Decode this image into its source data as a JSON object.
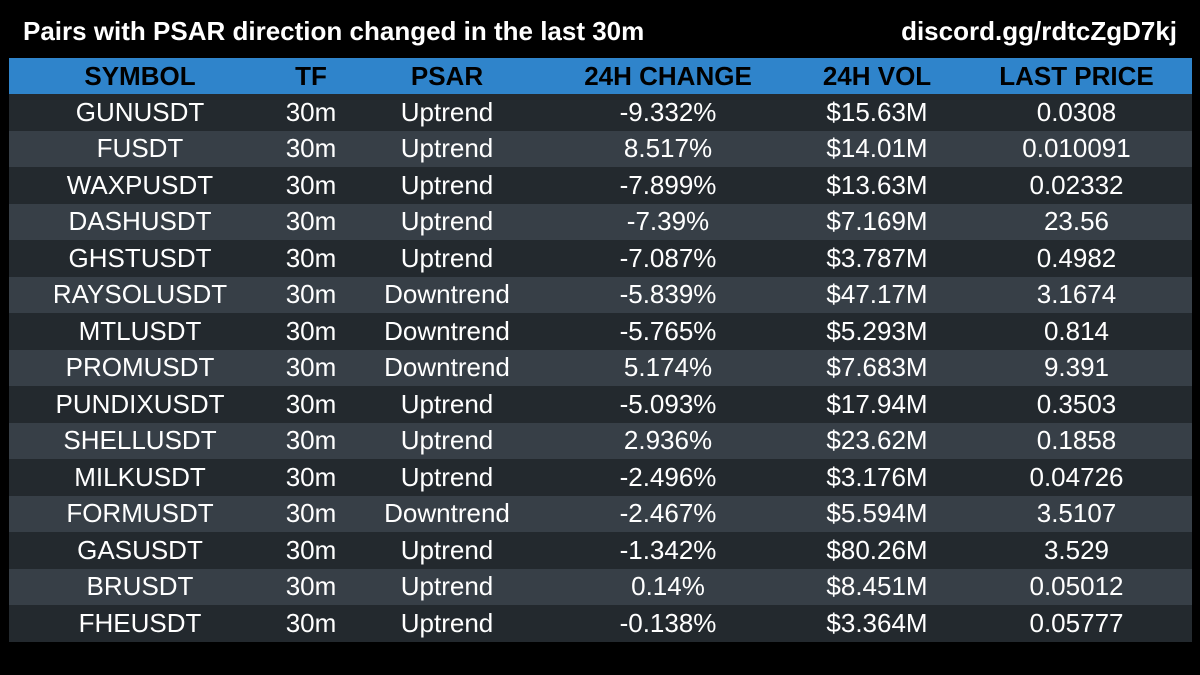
{
  "header": {
    "title": "Pairs with PSAR direction changed in the last 30m",
    "discord": "discord.gg/rdtcZgD7kj"
  },
  "columns": [
    "SYMBOL",
    "TF",
    "PSAR",
    "24H CHANGE",
    "24H VOL",
    "LAST PRICE"
  ],
  "rows": [
    [
      "GUNUSDT",
      "30m",
      "Uptrend",
      "-9.332%",
      "$15.63M",
      "0.0308"
    ],
    [
      "FUSDT",
      "30m",
      "Uptrend",
      "8.517%",
      "$14.01M",
      "0.010091"
    ],
    [
      "WAXPUSDT",
      "30m",
      "Uptrend",
      "-7.899%",
      "$13.63M",
      "0.02332"
    ],
    [
      "DASHUSDT",
      "30m",
      "Uptrend",
      "-7.39%",
      "$7.169M",
      "23.56"
    ],
    [
      "GHSTUSDT",
      "30m",
      "Uptrend",
      "-7.087%",
      "$3.787M",
      "0.4982"
    ],
    [
      "RAYSOLUSDT",
      "30m",
      "Downtrend",
      "-5.839%",
      "$47.17M",
      "3.1674"
    ],
    [
      "MTLUSDT",
      "30m",
      "Downtrend",
      "-5.765%",
      "$5.293M",
      "0.814"
    ],
    [
      "PROMUSDT",
      "30m",
      "Downtrend",
      "5.174%",
      "$7.683M",
      "9.391"
    ],
    [
      "PUNDIXUSDT",
      "30m",
      "Uptrend",
      "-5.093%",
      "$17.94M",
      "0.3503"
    ],
    [
      "SHELLUSDT",
      "30m",
      "Uptrend",
      "2.936%",
      "$23.62M",
      "0.1858"
    ],
    [
      "MILKUSDT",
      "30m",
      "Uptrend",
      "-2.496%",
      "$3.176M",
      "0.04726"
    ],
    [
      "FORMUSDT",
      "30m",
      "Downtrend",
      "-2.467%",
      "$5.594M",
      "3.5107"
    ],
    [
      "GASUSDT",
      "30m",
      "Uptrend",
      "-1.342%",
      "$80.26M",
      "3.529"
    ],
    [
      "BRUSDT",
      "30m",
      "Uptrend",
      "0.14%",
      "$8.451M",
      "0.05012"
    ],
    [
      "FHEUSDT",
      "30m",
      "Uptrend",
      "-0.138%",
      "$3.364M",
      "0.05777"
    ]
  ],
  "colors": {
    "background": "#000000",
    "header_row": "#2f84cb",
    "row_dark": "#23292e",
    "row_light": "#373f47",
    "text": "#ffffff"
  }
}
